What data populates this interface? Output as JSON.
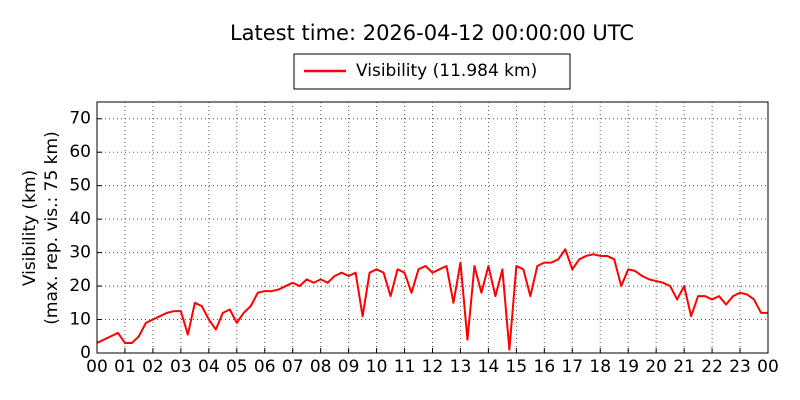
{
  "chart_data": {
    "type": "line",
    "title": "Latest time: 2026-04-12 00:00:00 UTC",
    "ylabel": [
      "Visibility (km)",
      "(max. rep. vis.: 75 km)"
    ],
    "series": [
      {
        "name": "Visibility (11.984 km)",
        "color": "#ff0000",
        "x": [
          0,
          0.25,
          0.5,
          0.75,
          1,
          1.25,
          1.5,
          1.75,
          2,
          2.25,
          2.5,
          2.75,
          3,
          3.25,
          3.5,
          3.75,
          4,
          4.25,
          4.5,
          4.75,
          5,
          5.25,
          5.5,
          5.75,
          6,
          6.25,
          6.5,
          6.75,
          7,
          7.25,
          7.5,
          7.75,
          8,
          8.25,
          8.5,
          8.75,
          9,
          9.25,
          9.5,
          9.75,
          10,
          10.25,
          10.5,
          10.75,
          11,
          11.25,
          11.5,
          11.75,
          12,
          12.25,
          12.5,
          12.75,
          13,
          13.25,
          13.5,
          13.75,
          14,
          14.25,
          14.5,
          14.75,
          15,
          15.25,
          15.5,
          15.75,
          16,
          16.25,
          16.5,
          16.75,
          17,
          17.25,
          17.5,
          17.75,
          18,
          18.25,
          18.5,
          18.75,
          19,
          19.25,
          19.5,
          19.75,
          20,
          20.25,
          20.5,
          20.75,
          21,
          21.25,
          21.5,
          21.75,
          22,
          22.25,
          22.5,
          22.75,
          23,
          23.25,
          23.5,
          23.75,
          24
        ],
        "values": [
          3,
          4,
          5,
          6,
          3,
          3,
          5,
          9,
          10,
          11,
          12,
          12.5,
          12.5,
          5.5,
          15,
          14,
          10,
          7,
          12,
          13,
          9,
          12,
          14,
          18,
          18.5,
          18.5,
          19,
          20,
          21,
          20,
          22,
          21,
          22,
          21,
          23,
          24,
          23,
          24,
          11,
          24,
          25,
          24,
          17,
          25,
          24,
          18,
          25,
          26,
          24,
          25,
          26,
          15,
          27,
          4,
          26,
          18,
          26,
          17,
          25,
          1,
          26,
          25,
          17,
          26,
          27,
          27,
          28,
          31,
          25,
          28,
          29,
          29.5,
          29,
          29,
          28,
          20,
          25,
          24.5,
          23,
          22,
          21.5,
          21,
          20,
          16,
          20,
          11,
          17,
          17,
          16,
          17,
          14.5,
          17,
          18,
          17.5,
          16,
          12,
          12
        ]
      }
    ],
    "xlim": [
      0,
      24
    ],
    "ylim": [
      0,
      75
    ],
    "xticks": [
      {
        "value": 0,
        "label": "00"
      },
      {
        "value": 1,
        "label": "01"
      },
      {
        "value": 2,
        "label": "02"
      },
      {
        "value": 3,
        "label": "03"
      },
      {
        "value": 4,
        "label": "04"
      },
      {
        "value": 5,
        "label": "05"
      },
      {
        "value": 6,
        "label": "06"
      },
      {
        "value": 7,
        "label": "07"
      },
      {
        "value": 8,
        "label": "08"
      },
      {
        "value": 9,
        "label": "09"
      },
      {
        "value": 10,
        "label": "10"
      },
      {
        "value": 11,
        "label": "11"
      },
      {
        "value": 12,
        "label": "12"
      },
      {
        "value": 13,
        "label": "13"
      },
      {
        "value": 14,
        "label": "14"
      },
      {
        "value": 15,
        "label": "15"
      },
      {
        "value": 16,
        "label": "16"
      },
      {
        "value": 17,
        "label": "17"
      },
      {
        "value": 18,
        "label": "18"
      },
      {
        "value": 19,
        "label": "19"
      },
      {
        "value": 20,
        "label": "20"
      },
      {
        "value": 21,
        "label": "21"
      },
      {
        "value": 22,
        "label": "22"
      },
      {
        "value": 23,
        "label": "23"
      },
      {
        "value": 24,
        "label": "00"
      }
    ],
    "yticks": [
      0,
      10,
      20,
      30,
      40,
      50,
      60,
      70
    ],
    "grid": true
  }
}
